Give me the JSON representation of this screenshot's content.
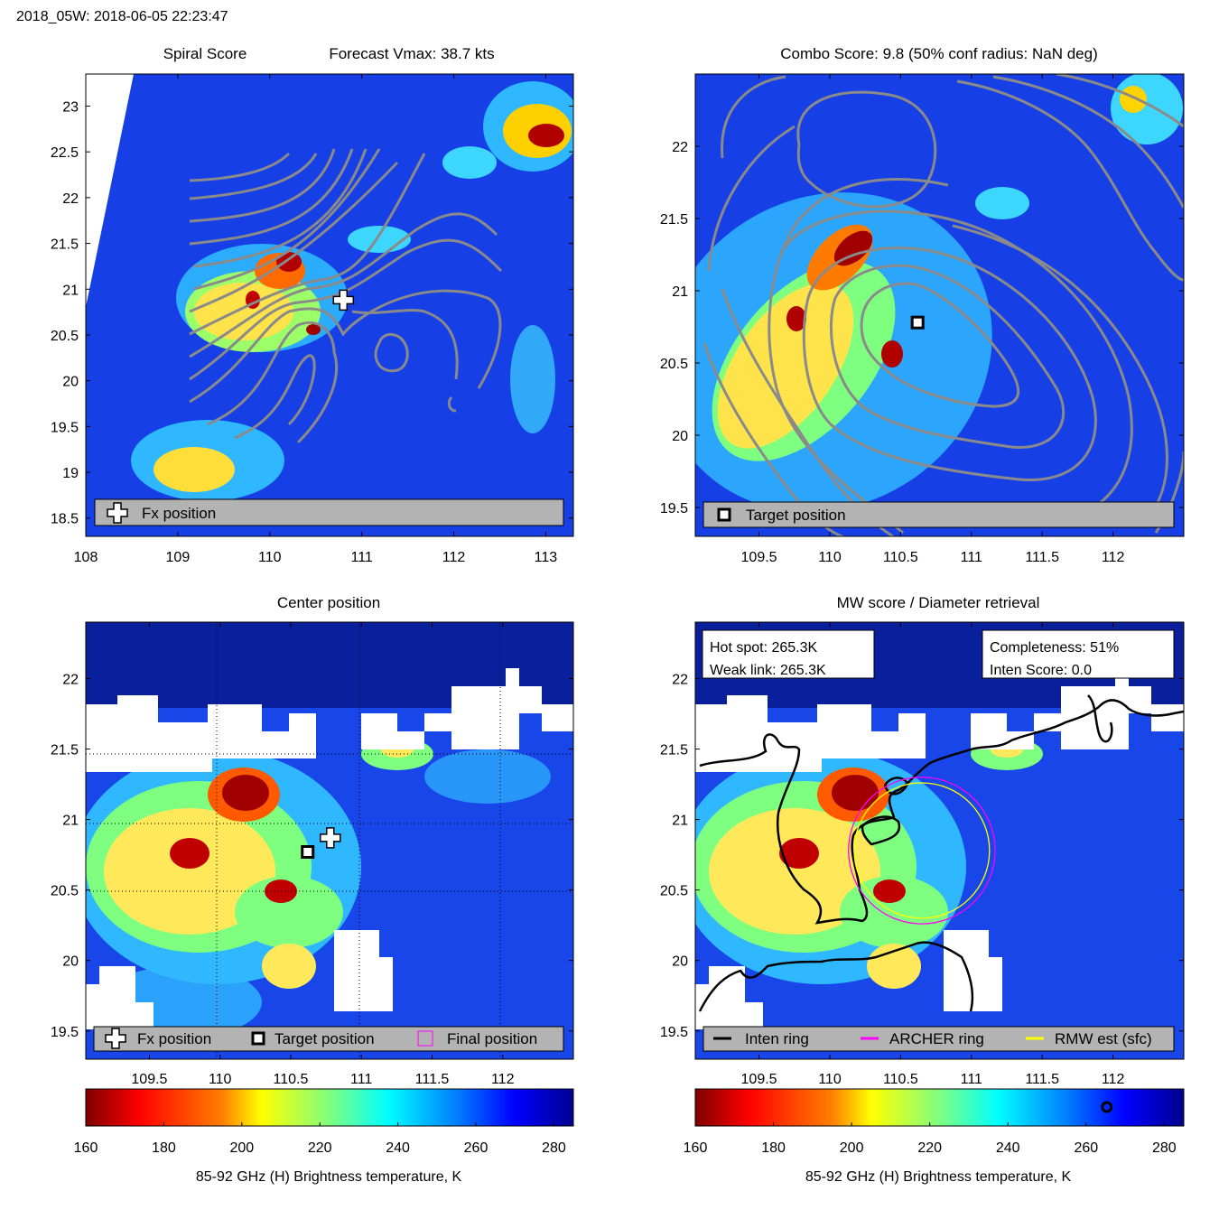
{
  "header": {
    "title": "2018_05W: 2018-06-05 22:23:47"
  },
  "colors": {
    "jet": [
      "#7f0000",
      "#ff0000",
      "#ff7f00",
      "#ffff00",
      "#7fff7f",
      "#00ffff",
      "#007fff",
      "#0000ff",
      "#00008f"
    ],
    "contour": "#8a8a8a",
    "legend_bg": "#b3b3b3",
    "inten_ring": "#000000",
    "archer_ring": "#ff00ff",
    "rmw_ring": "#ffff00"
  },
  "chart_data": [
    {
      "id": "spiral",
      "type": "heatmap",
      "title_left": "Spiral Score",
      "title_right": "Forecast Vmax: 38.7 kts",
      "xlim": [
        108,
        113.3
      ],
      "ylim": [
        18.3,
        23.35
      ],
      "xticks": [
        "108",
        "109",
        "110",
        "111",
        "112",
        "113"
      ],
      "yticks": [
        "18.5",
        "19",
        "19.5",
        "20",
        "20.5",
        "21",
        "21.5",
        "22",
        "22.5",
        "23"
      ],
      "markers": [
        {
          "type": "fx",
          "lon": 110.8,
          "lat": 20.88
        }
      ],
      "legend": [
        {
          "symbol": "fx",
          "label": "Fx position"
        }
      ]
    },
    {
      "id": "combo",
      "type": "heatmap",
      "title": "Combo Score: 9.8  (50% conf radius: NaN deg)",
      "xlim": [
        109.05,
        112.5
      ],
      "ylim": [
        19.3,
        22.5
      ],
      "xticks": [
        "109.5",
        "110",
        "110.5",
        "111",
        "111.5",
        "112"
      ],
      "yticks": [
        "19.5",
        "20",
        "20.5",
        "21",
        "21.5",
        "22"
      ],
      "markers": [
        {
          "type": "target",
          "lon": 110.62,
          "lat": 20.78
        }
      ],
      "legend": [
        {
          "symbol": "target",
          "label": "Target position"
        }
      ]
    },
    {
      "id": "center",
      "type": "heatmap",
      "title": "Center position",
      "xlim": [
        109.05,
        112.5
      ],
      "ylim": [
        19.3,
        22.4
      ],
      "xticks": [
        "109.5",
        "110",
        "110.5",
        "111",
        "111.5",
        "112"
      ],
      "yticks": [
        "19.5",
        "20",
        "20.5",
        "21",
        "21.5",
        "22"
      ],
      "markers": [
        {
          "type": "fx",
          "lon": 110.78,
          "lat": 20.87
        },
        {
          "type": "target",
          "lon": 110.62,
          "lat": 20.77
        }
      ],
      "legend": [
        {
          "symbol": "fx",
          "label": "Fx position"
        },
        {
          "symbol": "target",
          "label": "Target position"
        },
        {
          "symbol": "final",
          "label": "Final position"
        }
      ],
      "colorbar": {
        "ticks": [
          "160",
          "180",
          "200",
          "220",
          "240",
          "260",
          "280"
        ],
        "range": [
          160,
          285
        ],
        "label": "85-92 GHz (H) Brightness temperature, K"
      }
    },
    {
      "id": "mw",
      "type": "heatmap",
      "title": "MW score / Diameter retrieval",
      "xlim": [
        109.05,
        112.5
      ],
      "ylim": [
        19.3,
        22.4
      ],
      "xticks": [
        "109.5",
        "110",
        "110.5",
        "111",
        "111.5",
        "112"
      ],
      "yticks": [
        "19.5",
        "20",
        "20.5",
        "21",
        "21.5",
        "22"
      ],
      "info_left": [
        "Hot spot: 265.3K",
        "Weak link: 265.3K"
      ],
      "info_right": [
        "Completeness: 51%",
        "Inten Score: 0.0"
      ],
      "rings": {
        "center_lon": 110.65,
        "center_lat": 20.78,
        "archer_radius_deg": 0.52,
        "rmw_radius_deg": 0.48
      },
      "legend": [
        {
          "symbol": "inten",
          "label": "Inten ring"
        },
        {
          "symbol": "archer",
          "label": "ARCHER ring"
        },
        {
          "symbol": "rmw",
          "label": "RMW est (sfc)"
        }
      ],
      "colorbar": {
        "ticks": [
          "160",
          "180",
          "200",
          "220",
          "240",
          "260",
          "280"
        ],
        "range": [
          160,
          285
        ],
        "label": "85-92 GHz (H) Brightness temperature, K",
        "marker_value": 265.3
      }
    }
  ]
}
